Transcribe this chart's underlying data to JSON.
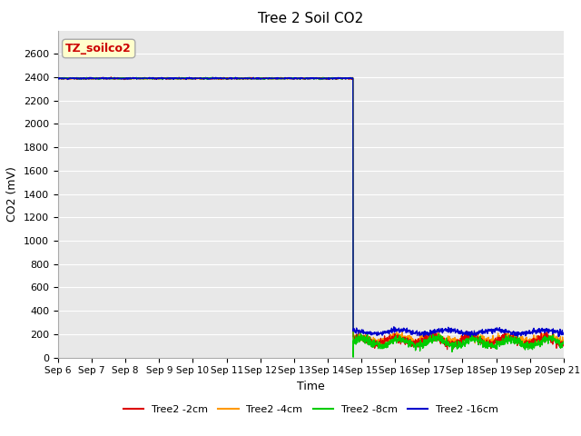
{
  "title": "Tree 2 Soil CO2",
  "xlabel": "Time",
  "ylabel": "CO2 (mV)",
  "ylim": [
    0,
    2800
  ],
  "yticks": [
    0,
    200,
    400,
    600,
    800,
    1000,
    1200,
    1400,
    1600,
    1800,
    2000,
    2200,
    2400,
    2600
  ],
  "x_tick_labels": [
    "Sep 6",
    "Sep 7",
    "Sep 8",
    "Sep 9",
    "Sep 10",
    "Sep 11",
    "Sep 12",
    "Sep 13",
    "Sep 14",
    "Sep 15",
    "Sep 16",
    "Sep 17",
    "Sep 18",
    "Sep 19",
    "Sep 20",
    "Sep 21"
  ],
  "annotation_text": "TZ_soilco2",
  "annotation_box_facecolor": "#ffffcc",
  "annotation_box_edgecolor": "#aaaaaa",
  "annotation_text_color": "#cc0000",
  "bg_color": "#e8e8e8",
  "series": [
    {
      "label": "Tree2 -2cm",
      "color": "#dd0000"
    },
    {
      "label": "Tree2 -4cm",
      "color": "#ff9900"
    },
    {
      "label": "Tree2 -8cm",
      "color": "#00cc00"
    },
    {
      "label": "Tree2 -16cm",
      "color": "#0000cc"
    }
  ],
  "drop_day": 8.75,
  "high_value": 2390,
  "post_drop": {
    "red": {
      "mean": 145,
      "amp": 30,
      "freq": 0.9,
      "seed": 42
    },
    "orange": {
      "mean": 160,
      "amp": 22,
      "freq": 0.9,
      "seed": 43
    },
    "green": {
      "mean": 130,
      "amp": 30,
      "freq": 0.9,
      "seed": 10
    },
    "blue": {
      "mean": 220,
      "amp": 15,
      "freq": 0.7,
      "seed": 44
    }
  }
}
